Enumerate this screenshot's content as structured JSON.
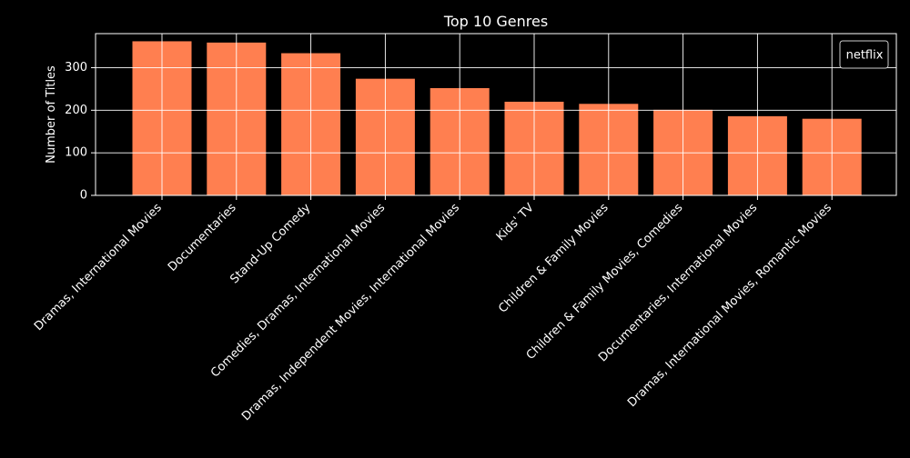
{
  "colors": {
    "background": "#000000",
    "bar": "#ff7f50",
    "axis": "#ffffff",
    "grid": "#ffffff",
    "text": "#ffffff"
  },
  "chart_data": {
    "type": "bar",
    "title": "Top 10 Genres",
    "xlabel": "",
    "ylabel": "Number of Titles",
    "categories": [
      "Dramas, International Movies",
      "Documentaries",
      "Stand-Up Comedy",
      "Comedies, Dramas, International Movies",
      "Dramas, Independent Movies, International Movies",
      "Kids' TV",
      "Children & Family Movies",
      "Children & Family Movies, Comedies",
      "Documentaries, International Movies",
      "Dramas, International Movies, Romantic Movies"
    ],
    "series": [
      {
        "name": "netflix",
        "values": [
          362,
          359,
          334,
          274,
          252,
          220,
          215,
          201,
          186,
          180
        ]
      }
    ],
    "ylim": [
      0,
      380
    ],
    "yticks": [
      0,
      100,
      200,
      300
    ],
    "grid": true,
    "legend": {
      "position": "top-right",
      "entries": [
        "netflix"
      ]
    }
  }
}
